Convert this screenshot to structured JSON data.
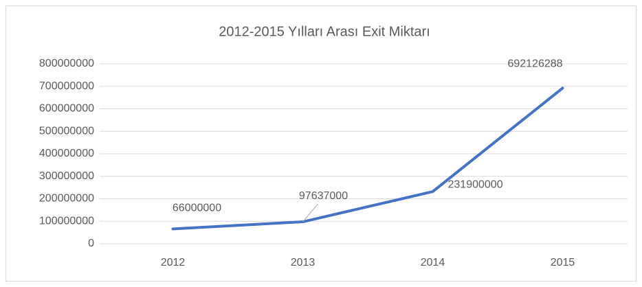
{
  "chart_data": {
    "type": "line",
    "title": "2012-2015 Yılları Arası Exit Miktarı",
    "categories": [
      "2012",
      "2013",
      "2014",
      "2015"
    ],
    "series": [
      {
        "name": "Exit Miktarı",
        "color": "#4472c4",
        "values": [
          66000000,
          97637000,
          231900000,
          692126288
        ]
      }
    ],
    "ylim": [
      0,
      800000000
    ],
    "yticks": [
      0,
      100000000,
      200000000,
      300000000,
      400000000,
      500000000,
      600000000,
      700000000,
      800000000
    ],
    "grid": true,
    "data_labels": true
  }
}
